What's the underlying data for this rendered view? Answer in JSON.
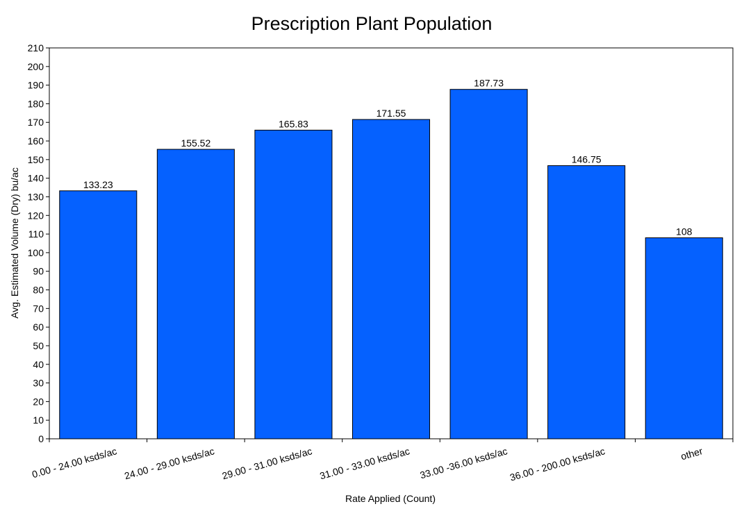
{
  "chart_data": {
    "type": "bar",
    "title": "Prescription Plant Population",
    "xlabel": "Rate Applied (Count)",
    "ylabel": "Avg. Estimated Volume (Dry) bu/ac",
    "categories": [
      "0.00 - 24.00 ksds/ac",
      "24.00 - 29.00 ksds/ac",
      "29.00 - 31.00 ksds/ac",
      "31.00 - 33.00 ksds/ac",
      "33.00 -36.00 ksds/ac",
      "36.00 - 200.00 ksds/ac",
      "other"
    ],
    "values": [
      133.23,
      155.52,
      165.83,
      171.55,
      187.73,
      146.75,
      108
    ],
    "data_labels": [
      "133.23",
      "155.52",
      "165.83",
      "171.55",
      "187.73",
      "146.75",
      "108"
    ],
    "ylim": [
      0,
      210
    ],
    "ytick_step": 10,
    "bar_color": "#0561FF",
    "grid": false,
    "legend": "none"
  }
}
